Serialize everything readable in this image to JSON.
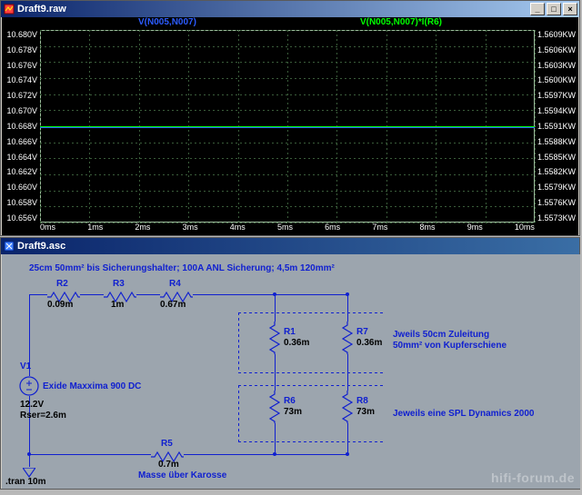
{
  "plot_window": {
    "title": "Draft9.raw",
    "background": "#000000",
    "axis_color": "#ffffff",
    "grid_color": "#3a5c3a",
    "border_color": "#9cbc9c",
    "legend": [
      {
        "label": "V(N005,N007)",
        "color": "#2c5cff"
      },
      {
        "label": "V(N005,N007)*I(R6)",
        "color": "#00ff00"
      }
    ],
    "y_left": {
      "ticks": [
        "10.680V",
        "10.678V",
        "10.676V",
        "10.674V",
        "10.672V",
        "10.670V",
        "10.668V",
        "10.666V",
        "10.664V",
        "10.662V",
        "10.660V",
        "10.658V",
        "10.656V"
      ]
    },
    "y_right": {
      "ticks": [
        "1.5609KW",
        "1.5606KW",
        "1.5603KW",
        "1.5600KW",
        "1.5597KW",
        "1.5594KW",
        "1.5591KW",
        "1.5588KW",
        "1.5585KW",
        "1.5582KW",
        "1.5579KW",
        "1.5576KW",
        "1.5573KW"
      ]
    },
    "x_axis": {
      "ticks": [
        "0ms",
        "1ms",
        "2ms",
        "3ms",
        "4ms",
        "5ms",
        "6ms",
        "7ms",
        "8ms",
        "9ms",
        "10ms"
      ]
    },
    "traces": [
      {
        "name": "trace-blue",
        "color": "#2c5cff",
        "frac_from_top": 0.5,
        "width": 2
      },
      {
        "name": "trace-green",
        "color": "#00ff00",
        "frac_from_top": 0.5,
        "width": 1
      }
    ]
  },
  "schematic_window": {
    "title": "Draft9.asc",
    "background": "#9ca5ae",
    "wire_color": "#1020d0",
    "text_color_blue": "#1020d0",
    "text_color_black": "#000000",
    "annotations": {
      "top_note": "25cm 50mm² bis Sicherungshalter; 100A ANL Sicherung; 4,5m 120mm²",
      "right_note1": "Jweils 50cm Zuleitung\n50mm² von Kupferschiene",
      "right_note2": "Jeweils eine SPL Dynamics 2000",
      "v1_note": "Exide Maxxima 900 DC",
      "gnd_note": "Masse über Karosse",
      "spice": ".tran 10m"
    },
    "components": {
      "R2": {
        "name": "R2",
        "value": "0.09m"
      },
      "R3": {
        "name": "R3",
        "value": "1m"
      },
      "R4": {
        "name": "R4",
        "value": "0.67m"
      },
      "R1": {
        "name": "R1",
        "value": "0.36m"
      },
      "R7": {
        "name": "R7",
        "value": "0.36m"
      },
      "R6": {
        "name": "R6",
        "value": "73m"
      },
      "R8": {
        "name": "R8",
        "value": "73m"
      },
      "R5": {
        "name": "R5",
        "value": "0.7m"
      },
      "V1": {
        "name": "V1",
        "value1": "12.2V",
        "value2": "Rser=2.6m"
      }
    }
  },
  "watermark": "hifi-forum.de"
}
